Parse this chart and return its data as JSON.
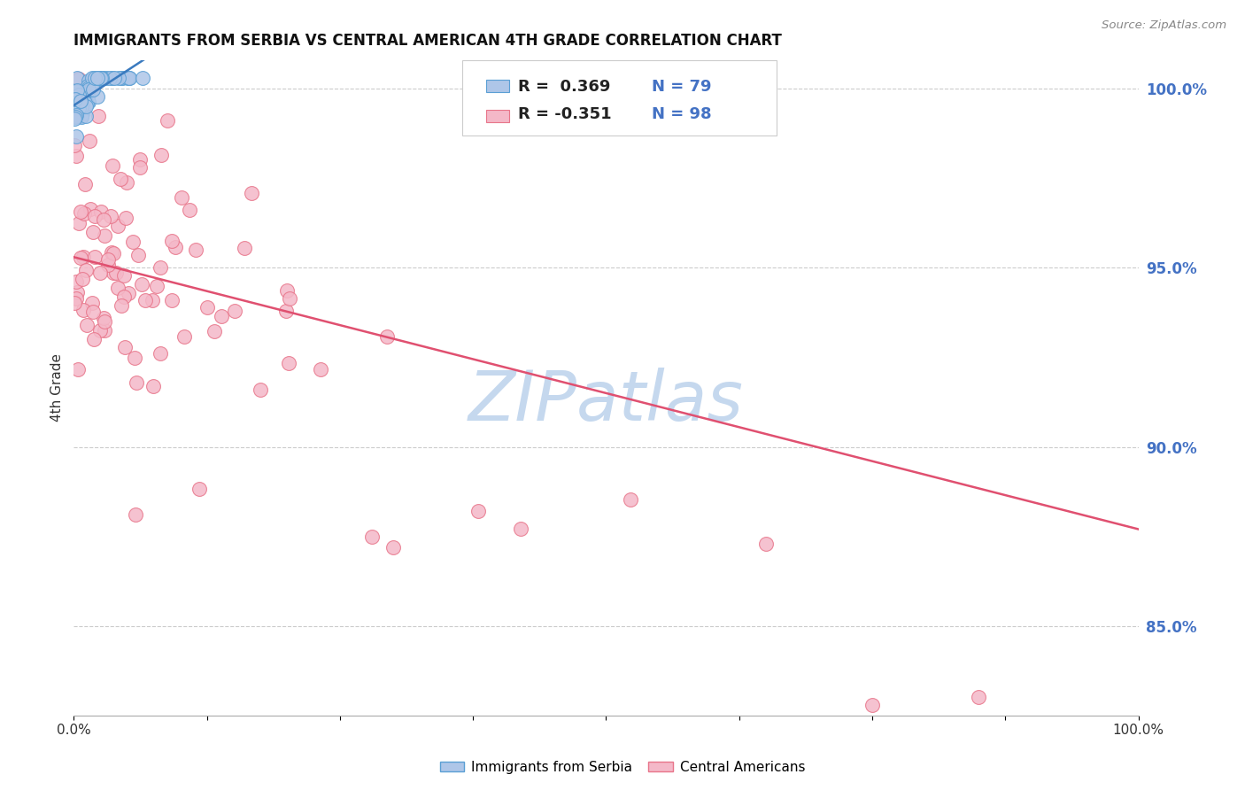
{
  "title": "IMMIGRANTS FROM SERBIA VS CENTRAL AMERICAN 4TH GRADE CORRELATION CHART",
  "source": "Source: ZipAtlas.com",
  "ylabel": "4th Grade",
  "xlim": [
    0.0,
    1.0
  ],
  "ylim": [
    0.825,
    1.008
  ],
  "right_yticks": [
    0.85,
    0.9,
    0.95,
    1.0
  ],
  "right_yticklabels": [
    "85.0%",
    "90.0%",
    "95.0%",
    "100.0%"
  ],
  "legend_r1": "R =  0.369",
  "legend_n1": "N = 79",
  "legend_r2": "R = -0.351",
  "legend_n2": "N = 98",
  "serbia_color": "#aec6e8",
  "central_color": "#f4b8c8",
  "serbia_edge_color": "#5a9fd4",
  "central_edge_color": "#e8758a",
  "serbia_line_color": "#3a7abf",
  "central_line_color": "#e05070",
  "grid_color": "#cccccc",
  "watermark_color": "#c5d8ee",
  "title_color": "#111111",
  "right_tick_color": "#4472C4",
  "serbia_seed": 42,
  "central_seed": 15,
  "n_serbia": 79,
  "n_central": 98
}
